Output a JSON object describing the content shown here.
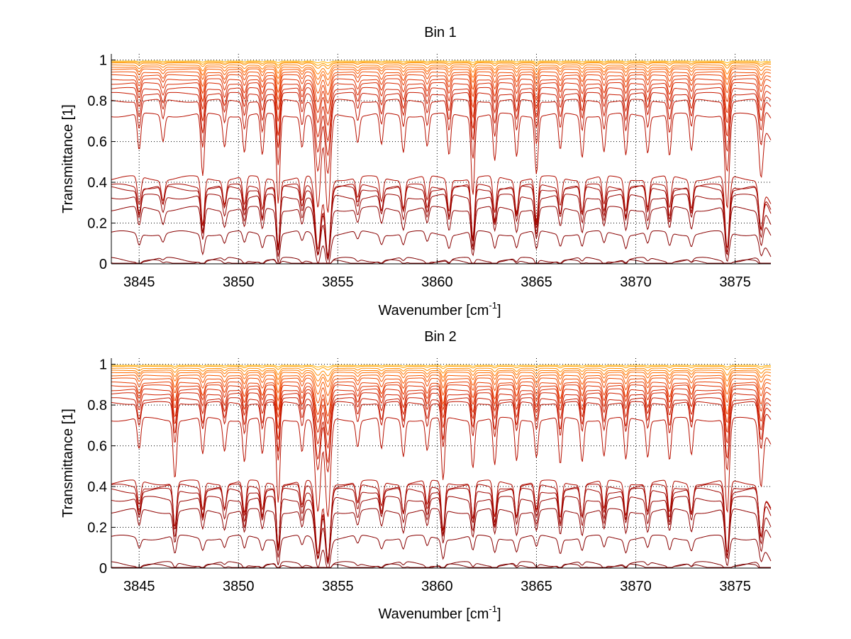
{
  "chart_data": [
    {
      "type": "line",
      "title": "Bin 1",
      "xlabel": "Wavenumber [cm",
      "xlabel_sup": "-1",
      "xlabel_end": "]",
      "ylabel": "Transmittance [1]",
      "xlim": [
        3843.6,
        3876.8
      ],
      "ylim": [
        0,
        1.03
      ],
      "x_ticks": [
        3845,
        3850,
        3855,
        3860,
        3865,
        3870,
        3875
      ],
      "x_tick_labels": [
        "3845",
        "3850",
        "3855",
        "3860",
        "3865",
        "3870",
        "3875"
      ],
      "y_ticks": [
        0,
        0.2,
        0.4,
        0.6,
        0.8,
        1
      ],
      "y_tick_labels": [
        "0",
        "0.2",
        "0.4",
        "0.6",
        "0.8",
        "1"
      ],
      "grid": true,
      "grid_style": "dotted",
      "series_count": 22,
      "series_baselines": [
        0.995,
        0.99,
        0.985,
        0.975,
        0.965,
        0.955,
        0.94,
        0.925,
        0.905,
        0.885,
        0.86,
        0.835,
        0.8,
        0.73,
        0.42,
        0.38,
        0.37,
        0.33,
        0.27,
        0.15,
        0.02,
        0.008
      ],
      "absorption_lines": [
        {
          "x": 3845.0,
          "depth": 0.35,
          "width": 0.12
        },
        {
          "x": 3846.2,
          "depth": 0.25,
          "width": 0.12
        },
        {
          "x": 3848.2,
          "depth": 0.6,
          "width": 0.12
        },
        {
          "x": 3849.3,
          "depth": 0.3,
          "width": 0.12
        },
        {
          "x": 3850.3,
          "depth": 0.35,
          "width": 0.12
        },
        {
          "x": 3851.2,
          "depth": 0.4,
          "width": 0.12
        },
        {
          "x": 3852.0,
          "depth": 0.85,
          "width": 0.12
        },
        {
          "x": 3853.2,
          "depth": 0.3,
          "width": 0.12
        },
        {
          "x": 3854.0,
          "depth": 0.9,
          "width": 0.2
        },
        {
          "x": 3854.5,
          "depth": 0.95,
          "width": 0.18
        },
        {
          "x": 3856.0,
          "depth": 0.25,
          "width": 0.12
        },
        {
          "x": 3857.2,
          "depth": 0.3,
          "width": 0.12
        },
        {
          "x": 3858.3,
          "depth": 0.35,
          "width": 0.12
        },
        {
          "x": 3859.5,
          "depth": 0.3,
          "width": 0.12
        },
        {
          "x": 3860.6,
          "depth": 0.4,
          "width": 0.12
        },
        {
          "x": 3861.8,
          "depth": 0.75,
          "width": 0.12
        },
        {
          "x": 3862.9,
          "depth": 0.45,
          "width": 0.12
        },
        {
          "x": 3864.0,
          "depth": 0.4,
          "width": 0.12
        },
        {
          "x": 3865.0,
          "depth": 0.55,
          "width": 0.12
        },
        {
          "x": 3866.2,
          "depth": 0.35,
          "width": 0.12
        },
        {
          "x": 3867.3,
          "depth": 0.4,
          "width": 0.12
        },
        {
          "x": 3868.4,
          "depth": 0.35,
          "width": 0.12
        },
        {
          "x": 3869.5,
          "depth": 0.4,
          "width": 0.12
        },
        {
          "x": 3870.6,
          "depth": 0.35,
          "width": 0.12
        },
        {
          "x": 3871.7,
          "depth": 0.4,
          "width": 0.12
        },
        {
          "x": 3872.8,
          "depth": 0.35,
          "width": 0.12
        },
        {
          "x": 3874.6,
          "depth": 0.9,
          "width": 0.15
        },
        {
          "x": 3876.3,
          "depth": 0.55,
          "width": 0.15
        }
      ],
      "series_colors": [
        "#ffb300",
        "#ffa000",
        "#ff8c00",
        "#ff7a00",
        "#ff6a00",
        "#f85a00",
        "#f04a00",
        "#e83c00",
        "#e03000",
        "#d82800",
        "#d02000",
        "#c81a00",
        "#c01400",
        "#b81000",
        "#b00c00",
        "#a80800",
        "#a00600",
        "#980400",
        "#900200",
        "#880000",
        "#800000",
        "#780000"
      ]
    },
    {
      "type": "line",
      "title": "Bin 2",
      "xlabel": "Wavenumber [cm",
      "xlabel_sup": "-1",
      "xlabel_end": "]",
      "ylabel": "Transmittance [1]",
      "xlim": [
        3843.6,
        3876.8
      ],
      "ylim": [
        0,
        1.03
      ],
      "x_ticks": [
        3845,
        3850,
        3855,
        3860,
        3865,
        3870,
        3875
      ],
      "x_tick_labels": [
        "3845",
        "3850",
        "3855",
        "3860",
        "3865",
        "3870",
        "3875"
      ],
      "y_ticks": [
        0,
        0.2,
        0.4,
        0.6,
        0.8,
        1
      ],
      "y_tick_labels": [
        "0",
        "0.2",
        "0.4",
        "0.6",
        "0.8",
        "1"
      ],
      "grid": true,
      "grid_style": "dotted",
      "series_count": 22,
      "series_baselines": [
        0.995,
        0.99,
        0.98,
        0.97,
        0.96,
        0.945,
        0.93,
        0.91,
        0.895,
        0.875,
        0.855,
        0.83,
        0.81,
        0.73,
        0.42,
        0.4,
        0.38,
        0.34,
        0.28,
        0.15,
        0.02,
        0.008
      ],
      "absorption_lines": [
        {
          "x": 3845.0,
          "depth": 0.3,
          "width": 0.12
        },
        {
          "x": 3846.8,
          "depth": 0.55,
          "width": 0.12
        },
        {
          "x": 3848.2,
          "depth": 0.35,
          "width": 0.12
        },
        {
          "x": 3849.3,
          "depth": 0.3,
          "width": 0.12
        },
        {
          "x": 3850.3,
          "depth": 0.4,
          "width": 0.12
        },
        {
          "x": 3851.2,
          "depth": 0.35,
          "width": 0.12
        },
        {
          "x": 3852.0,
          "depth": 0.8,
          "width": 0.12
        },
        {
          "x": 3853.2,
          "depth": 0.3,
          "width": 0.12
        },
        {
          "x": 3854.0,
          "depth": 0.9,
          "width": 0.2
        },
        {
          "x": 3854.5,
          "depth": 0.95,
          "width": 0.18
        },
        {
          "x": 3856.0,
          "depth": 0.25,
          "width": 0.12
        },
        {
          "x": 3857.2,
          "depth": 0.3,
          "width": 0.12
        },
        {
          "x": 3858.3,
          "depth": 0.35,
          "width": 0.12
        },
        {
          "x": 3859.5,
          "depth": 0.3,
          "width": 0.12
        },
        {
          "x": 3860.3,
          "depth": 0.6,
          "width": 0.12
        },
        {
          "x": 3861.8,
          "depth": 0.45,
          "width": 0.12
        },
        {
          "x": 3862.9,
          "depth": 0.45,
          "width": 0.12
        },
        {
          "x": 3864.0,
          "depth": 0.4,
          "width": 0.12
        },
        {
          "x": 3865.0,
          "depth": 0.35,
          "width": 0.12
        },
        {
          "x": 3866.2,
          "depth": 0.45,
          "width": 0.12
        },
        {
          "x": 3867.3,
          "depth": 0.4,
          "width": 0.12
        },
        {
          "x": 3868.4,
          "depth": 0.35,
          "width": 0.12
        },
        {
          "x": 3869.5,
          "depth": 0.4,
          "width": 0.12
        },
        {
          "x": 3870.6,
          "depth": 0.35,
          "width": 0.12
        },
        {
          "x": 3871.7,
          "depth": 0.4,
          "width": 0.12
        },
        {
          "x": 3872.8,
          "depth": 0.35,
          "width": 0.12
        },
        {
          "x": 3874.6,
          "depth": 0.9,
          "width": 0.15
        },
        {
          "x": 3876.3,
          "depth": 0.6,
          "width": 0.15
        }
      ],
      "series_colors": [
        "#ffb300",
        "#ffa000",
        "#ff8c00",
        "#ff7a00",
        "#ff6a00",
        "#f85a00",
        "#f04a00",
        "#e83c00",
        "#e03000",
        "#d82800",
        "#d02000",
        "#c81a00",
        "#c01400",
        "#b81000",
        "#b00c00",
        "#a80800",
        "#a00600",
        "#980400",
        "#900200",
        "#880000",
        "#800000",
        "#780000"
      ]
    }
  ],
  "colors": {
    "axis": "#000000",
    "grid": "#000000",
    "background": "#ffffff"
  }
}
